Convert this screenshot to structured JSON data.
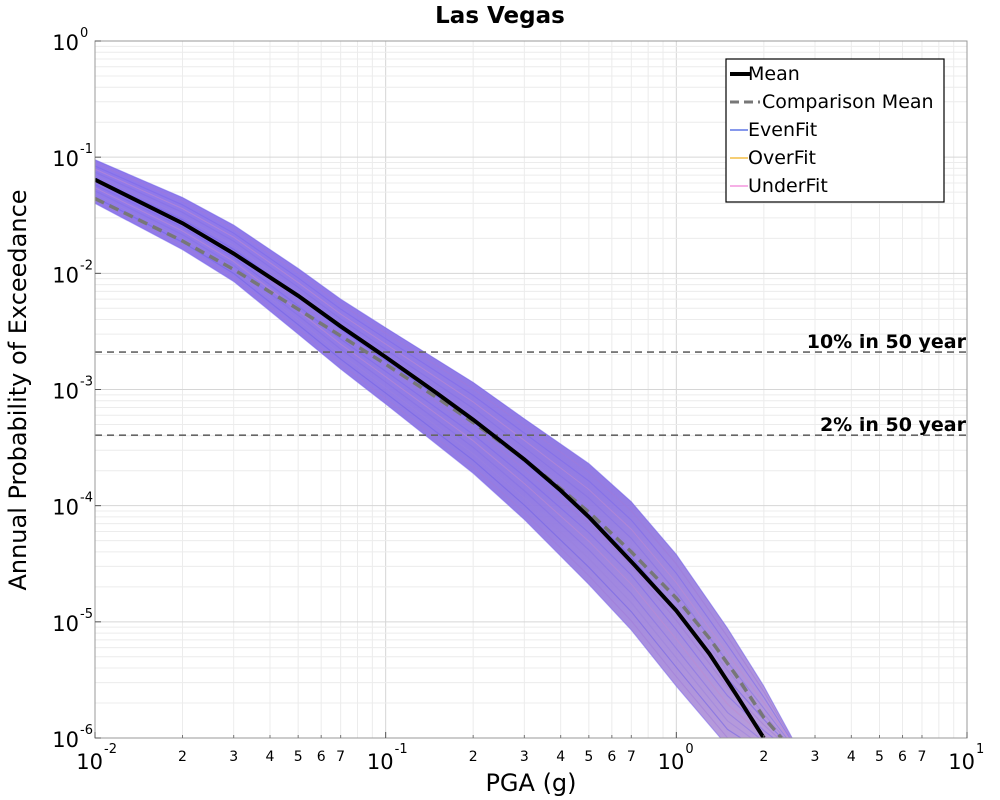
{
  "chart_data": {
    "type": "line",
    "title": "Las Vegas",
    "xlabel": "PGA (g)",
    "ylabel": "Annual Probability of Exceedance",
    "x_scale": "log",
    "y_scale": "log",
    "xlim": [
      0.01,
      10
    ],
    "ylim": [
      1e-06,
      1
    ],
    "grid": true,
    "legend_position": "top-right",
    "x_major_ticks": [
      {
        "base": "10",
        "exp": "-2",
        "value": 0.01
      },
      {
        "base": "10",
        "exp": "-1",
        "value": 0.1
      },
      {
        "base": "10",
        "exp": "0",
        "value": 1
      },
      {
        "base": "10",
        "exp": "1",
        "value": 10
      }
    ],
    "x_minor_tick_labels": [
      "2",
      "3",
      "4",
      "5",
      "6",
      "7"
    ],
    "y_major_ticks": [
      {
        "base": "10",
        "exp": "0",
        "value": 1
      },
      {
        "base": "10",
        "exp": "-1",
        "value": 0.1
      },
      {
        "base": "10",
        "exp": "-2",
        "value": 0.01
      },
      {
        "base": "10",
        "exp": "-3",
        "value": 0.001
      },
      {
        "base": "10",
        "exp": "-4",
        "value": 0.0001
      },
      {
        "base": "10",
        "exp": "-5",
        "value": 1e-05
      },
      {
        "base": "10",
        "exp": "-6",
        "value": 1e-06
      }
    ],
    "reference_lines": [
      {
        "label": "10% in 50 year",
        "y": 0.0021
      },
      {
        "label": "2% in 50 year",
        "y": 0.000404
      }
    ],
    "band": {
      "x": [
        0.01,
        0.02,
        0.03,
        0.05,
        0.07,
        0.1,
        0.2,
        0.3,
        0.5,
        0.7,
        1.0,
        1.5,
        2.0,
        2.8
      ],
      "upper": [
        0.095,
        0.045,
        0.026,
        0.011,
        0.006,
        0.0034,
        0.00115,
        0.00056,
        0.00023,
        0.000108,
        3.8e-05,
        8.8e-06,
        2.8e-06,
        6e-07
      ],
      "lower": [
        0.04,
        0.016,
        0.0085,
        0.003,
        0.0015,
        0.00075,
        0.00019,
        7.6e-05,
        2.1e-05,
        8.5e-06,
        2.8e-06,
        8.5e-07,
        6e-07,
        6e-07
      ]
    },
    "series": [
      {
        "name": "Mean",
        "color": "#000000",
        "style": "solid",
        "x": [
          0.01,
          0.02,
          0.03,
          0.05,
          0.07,
          0.1,
          0.15,
          0.2,
          0.3,
          0.4,
          0.5,
          0.7,
          1.0,
          1.3,
          1.6,
          2.0
        ],
        "y": [
          0.064,
          0.027,
          0.0148,
          0.0064,
          0.0035,
          0.0019,
          0.00093,
          0.00055,
          0.00025,
          0.000135,
          8e-05,
          3.3e-05,
          1.25e-05,
          5.3e-06,
          2.4e-06,
          1e-06
        ]
      },
      {
        "name": "Comparison Mean",
        "color": "#777777",
        "style": "dashed",
        "x": [
          0.01,
          0.02,
          0.03,
          0.05,
          0.07,
          0.1,
          0.15,
          0.2,
          0.3,
          0.4,
          0.5,
          0.7,
          1.0,
          1.3,
          1.6,
          2.0,
          2.3
        ],
        "y": [
          0.044,
          0.019,
          0.0108,
          0.0049,
          0.0029,
          0.00165,
          0.00085,
          0.00052,
          0.00025,
          0.00014,
          8.8e-05,
          4e-05,
          1.6e-05,
          7.2e-06,
          3.5e-06,
          1.5e-06,
          1e-06
        ]
      },
      {
        "name": "EvenFit",
        "color": "#3f5be0",
        "style": "solid"
      },
      {
        "name": "OverFit",
        "color": "#f0b020",
        "style": "solid"
      },
      {
        "name": "UnderFit",
        "color": "#f080d8",
        "style": "solid"
      }
    ]
  }
}
